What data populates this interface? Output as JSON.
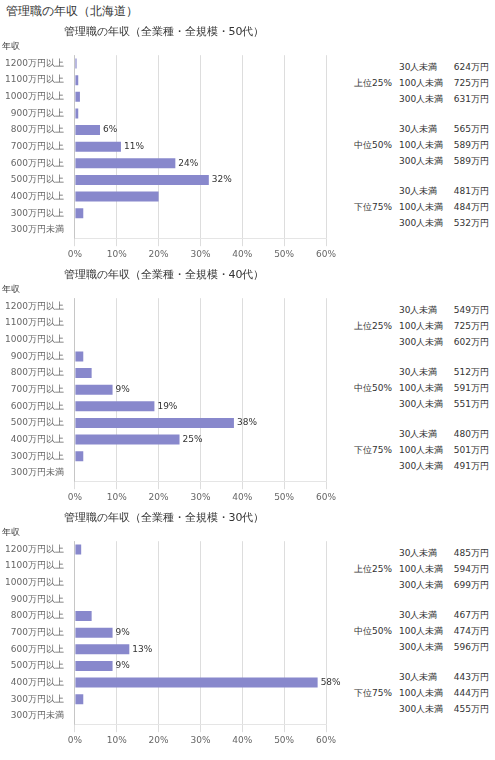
{
  "title": "管理職の年収（北海道）",
  "chart_data": [
    {
      "type": "bar",
      "orientation": "horizontal",
      "title": "管理職の年収（全業種・全規模・50代）",
      "ylabel": "年収",
      "categories": [
        "1200万円以上",
        "1100万円以上",
        "1000万円以上",
        "900万円以上",
        "800万円以上",
        "700万円以上",
        "600万円以上",
        "500万円以上",
        "400万円以上",
        "300万円以上",
        "300万円未満"
      ],
      "values": [
        0.4,
        0.8,
        1.2,
        0.8,
        6,
        11,
        24,
        32,
        20,
        2,
        0
      ],
      "data_labels": true,
      "value_labels": [
        null,
        null,
        null,
        null,
        "6%",
        "11%",
        "24%",
        "32%",
        null,
        null,
        null
      ],
      "color": "#8888cc",
      "xlim": [
        0,
        60
      ],
      "xticks": [
        {
          "value": 0,
          "label": "0%"
        },
        {
          "value": 10,
          "label": "10%"
        },
        {
          "value": 20,
          "label": "20%"
        },
        {
          "value": 30,
          "label": "30%"
        },
        {
          "value": 40,
          "label": "40%"
        },
        {
          "value": 50,
          "label": "50%"
        },
        {
          "value": 60,
          "label": "60%"
        }
      ],
      "grid": true,
      "stats": [
        {
          "label": "上位25%",
          "rows": [
            [
              "30人未満",
              "624万円"
            ],
            [
              "100人未満",
              "725万円"
            ],
            [
              "300人未満",
              "631万円"
            ]
          ]
        },
        {
          "label": "中位50%",
          "rows": [
            [
              "30人未満",
              "565万円"
            ],
            [
              "100人未満",
              "589万円"
            ],
            [
              "300人未満",
              "589万円"
            ]
          ]
        },
        {
          "label": "下位75%",
          "rows": [
            [
              "30人未満",
              "481万円"
            ],
            [
              "100人未満",
              "484万円"
            ],
            [
              "300人未満",
              "532万円"
            ]
          ]
        }
      ]
    },
    {
      "type": "bar",
      "orientation": "horizontal",
      "title": "管理職の年収（全業種・全規模・40代）",
      "ylabel": "年収",
      "categories": [
        "1200万円以上",
        "1100万円以上",
        "1000万円以上",
        "900万円以上",
        "800万円以上",
        "700万円以上",
        "600万円以上",
        "500万円以上",
        "400万円以上",
        "300万円以上",
        "300万円未満"
      ],
      "values": [
        0,
        0,
        0,
        2,
        4,
        9,
        19,
        38,
        25,
        2,
        0
      ],
      "data_labels": true,
      "value_labels": [
        null,
        null,
        null,
        null,
        null,
        "9%",
        "19%",
        "38%",
        "25%",
        null,
        null
      ],
      "color": "#8888cc",
      "xlim": [
        0,
        60
      ],
      "xticks": [
        {
          "value": 0,
          "label": "0%"
        },
        {
          "value": 10,
          "label": "10%"
        },
        {
          "value": 20,
          "label": "20%"
        },
        {
          "value": 30,
          "label": "30%"
        },
        {
          "value": 40,
          "label": "40%"
        },
        {
          "value": 50,
          "label": "50%"
        },
        {
          "value": 60,
          "label": "60%"
        }
      ],
      "grid": true,
      "stats": [
        {
          "label": "上位25%",
          "rows": [
            [
              "30人未満",
              "549万円"
            ],
            [
              "100人未満",
              "725万円"
            ],
            [
              "300人未満",
              "602万円"
            ]
          ]
        },
        {
          "label": "中位50%",
          "rows": [
            [
              "30人未満",
              "512万円"
            ],
            [
              "100人未満",
              "591万円"
            ],
            [
              "300人未満",
              "551万円"
            ]
          ]
        },
        {
          "label": "下位75%",
          "rows": [
            [
              "30人未満",
              "480万円"
            ],
            [
              "100人未満",
              "501万円"
            ],
            [
              "300人未満",
              "491万円"
            ]
          ]
        }
      ]
    },
    {
      "type": "bar",
      "orientation": "horizontal",
      "title": "管理職の年収（全業種・全規模・30代）",
      "ylabel": "年収",
      "categories": [
        "1200万円以上",
        "1100万円以上",
        "1000万円以上",
        "900万円以上",
        "800万円以上",
        "700万円以上",
        "600万円以上",
        "500万円以上",
        "400万円以上",
        "300万円以上",
        "300万円未満"
      ],
      "values": [
        1.5,
        0,
        0,
        0,
        4,
        9,
        13,
        9,
        58,
        2,
        0
      ],
      "data_labels": true,
      "value_labels": [
        null,
        null,
        null,
        null,
        null,
        "9%",
        "13%",
        "9%",
        "58%",
        null,
        null
      ],
      "color": "#8888cc",
      "xlim": [
        0,
        60
      ],
      "xticks": [
        {
          "value": 0,
          "label": "0%"
        },
        {
          "value": 10,
          "label": "10%"
        },
        {
          "value": 20,
          "label": "20%"
        },
        {
          "value": 30,
          "label": "30%"
        },
        {
          "value": 40,
          "label": "40%"
        },
        {
          "value": 50,
          "label": "50%"
        },
        {
          "value": 60,
          "label": "60%"
        }
      ],
      "grid": true,
      "stats": [
        {
          "label": "上位25%",
          "rows": [
            [
              "30人未満",
              "485万円"
            ],
            [
              "100人未満",
              "594万円"
            ],
            [
              "300人未満",
              "699万円"
            ]
          ]
        },
        {
          "label": "中位50%",
          "rows": [
            [
              "30人未満",
              "467万円"
            ],
            [
              "100人未満",
              "474万円"
            ],
            [
              "300人未満",
              "596万円"
            ]
          ]
        },
        {
          "label": "下位75%",
          "rows": [
            [
              "30人未満",
              "443万円"
            ],
            [
              "100人未満",
              "444万円"
            ],
            [
              "300人未満",
              "455万円"
            ]
          ]
        }
      ]
    }
  ]
}
